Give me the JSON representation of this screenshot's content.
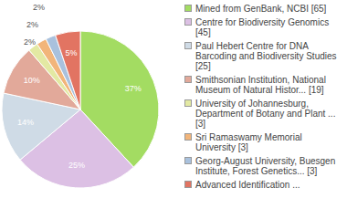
{
  "chart_data": {
    "type": "pie",
    "categories": [
      "Mined from GenBank, NCBI [65]",
      "Centre for Biodiversity Genomics [45]",
      "Paul Hebert Centre for DNA Barcoding and Biodiversity Studies [25]",
      "Smithsonian Institution, National Museum of Natural Histor... [19]",
      "University of Johannesburg, Department of Botany and Plant ... [3]",
      "Sri Ramaswamy Memorial University [3]",
      "Georg-August University, Buesgen Institute, Forest Genetics... [3]",
      "Advanced Identification ..."
    ],
    "values": [
      37,
      25,
      14,
      10,
      2,
      2,
      2,
      5
    ],
    "value_labels": [
      "37%",
      "25%",
      "14%",
      "10%",
      "2%",
      "2%",
      "2%",
      "5%"
    ],
    "colors": [
      "#a3dc62",
      "#dcc0e4",
      "#cfdbe6",
      "#e2a99a",
      "#e3e9a3",
      "#f2b57a",
      "#a9c1dd",
      "#e27462"
    ],
    "data_labels": true,
    "legend": "right"
  }
}
